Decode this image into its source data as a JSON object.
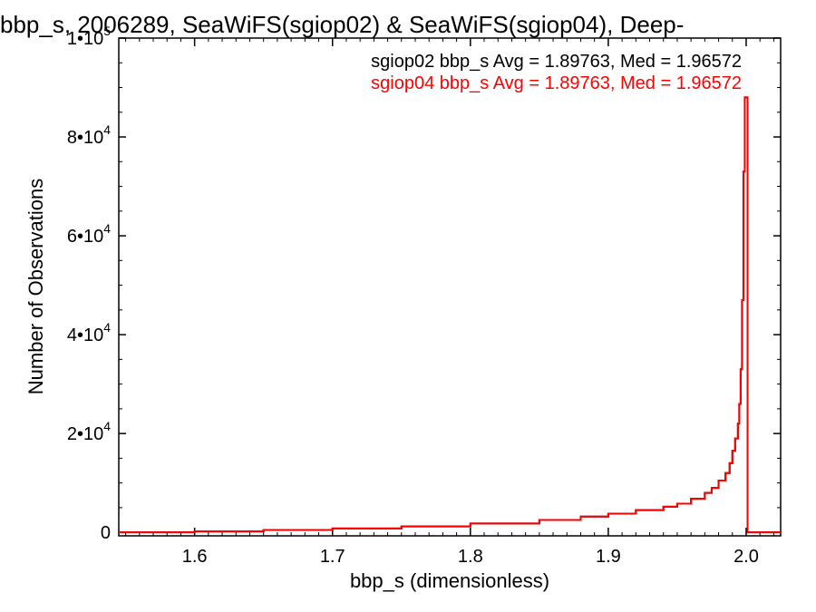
{
  "chart_data": {
    "type": "line",
    "title": "bbp_s, 2006289, SeaWiFS(sgiop02) & SeaWiFS(sgiop04), Deep-",
    "xlabel": "bbp_s (dimensionless)",
    "ylabel": "Number of Observations",
    "xlim": [
      1.545,
      2.025
    ],
    "ylim": [
      -700,
      100000
    ],
    "x_ticks": [
      1.6,
      1.7,
      1.8,
      1.9,
      2.0
    ],
    "x_tick_labels": [
      "1.6",
      "1.7",
      "1.8",
      "1.9",
      "2.0"
    ],
    "y_ticks": [
      0,
      20000,
      40000,
      60000,
      80000,
      100000
    ],
    "y_tick_labels": [
      {
        "mantissa": "0",
        "exponent": ""
      },
      {
        "mantissa": "2•10",
        "exponent": "4"
      },
      {
        "mantissa": "4•10",
        "exponent": "4"
      },
      {
        "mantissa": "6•10",
        "exponent": "4"
      },
      {
        "mantissa": "8•10",
        "exponent": "4"
      },
      {
        "mantissa": "1•10",
        "exponent": "5"
      }
    ],
    "annotations": [
      {
        "text": "sgiop02 bbp_s Avg = 1.89763, Med = 1.96572",
        "color": "#000000"
      },
      {
        "text": "sgiop04 bbp_s Avg = 1.89763, Med = 1.96572",
        "color": "#ff0000"
      }
    ],
    "series": [
      {
        "name": "sgiop02",
        "color": "#000000",
        "x": [
          1.545,
          1.6,
          1.65,
          1.7,
          1.75,
          1.8,
          1.85,
          1.88,
          1.9,
          1.92,
          1.94,
          1.95,
          1.96,
          1.97,
          1.975,
          1.98,
          1.985,
          1.988,
          1.99,
          1.992,
          1.994,
          1.995,
          1.996,
          1.997,
          1.998,
          1.999,
          2.0,
          2.001,
          2.001,
          2.025
        ],
        "y": [
          0,
          200,
          500,
          800,
          1200,
          1800,
          2500,
          3200,
          3800,
          4500,
          5200,
          5800,
          6800,
          8000,
          9000,
          10500,
          12000,
          14000,
          16500,
          19000,
          22000,
          26000,
          33000,
          47000,
          73000,
          88000,
          88000,
          88000,
          0,
          0
        ]
      },
      {
        "name": "sgiop04",
        "color": "#ff0000",
        "x": [
          1.545,
          1.6,
          1.65,
          1.7,
          1.75,
          1.8,
          1.85,
          1.88,
          1.9,
          1.92,
          1.94,
          1.95,
          1.96,
          1.97,
          1.975,
          1.98,
          1.985,
          1.988,
          1.99,
          1.992,
          1.994,
          1.995,
          1.996,
          1.997,
          1.998,
          1.999,
          2.0,
          2.001,
          2.001,
          2.025
        ],
        "y": [
          0,
          200,
          500,
          800,
          1200,
          1800,
          2500,
          3200,
          3800,
          4500,
          5200,
          5800,
          6800,
          8000,
          9000,
          10500,
          12000,
          14000,
          16500,
          19000,
          22000,
          26000,
          33000,
          47000,
          73000,
          88000,
          88000,
          88000,
          0,
          0
        ]
      }
    ]
  }
}
